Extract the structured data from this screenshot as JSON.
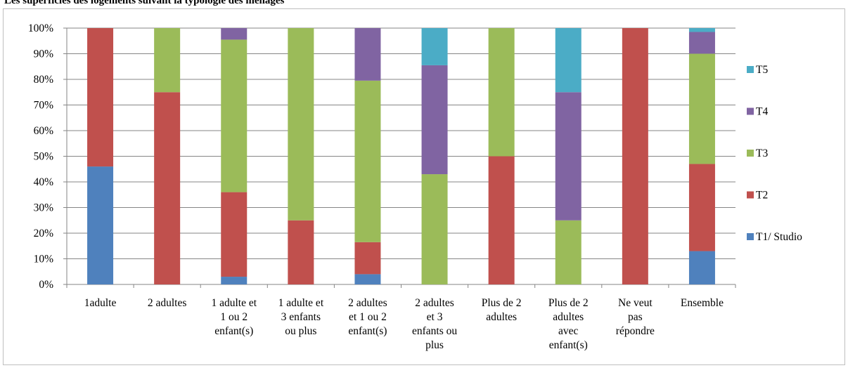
{
  "title": "Les superficies des logements suivant la typologie des ménages",
  "chart_data": {
    "type": "bar",
    "stacked": true,
    "percent": true,
    "categories": [
      [
        "1adulte"
      ],
      [
        "2 adultes"
      ],
      [
        "1 adulte et",
        "1 ou 2",
        "enfant(s)"
      ],
      [
        "1 adulte et",
        "3 enfants",
        "ou plus"
      ],
      [
        "2 adultes",
        "et 1 ou 2",
        "enfant(s)"
      ],
      [
        "2 adultes",
        "et 3",
        "enfants ou",
        "plus"
      ],
      [
        "Plus de 2",
        "adultes"
      ],
      [
        "Plus de 2",
        "adultes",
        "avec",
        "enfant(s)"
      ],
      [
        "Ne veut",
        "pas",
        "répondre"
      ],
      [
        "Ensemble"
      ]
    ],
    "series": [
      {
        "name": "T1/ Studio",
        "color": "#4f81bd",
        "values": [
          46,
          0,
          3,
          0,
          4,
          0,
          0,
          0,
          0,
          13
        ]
      },
      {
        "name": "T2",
        "color": "#c0504d",
        "values": [
          54,
          75,
          33,
          25,
          12.5,
          0,
          50,
          0,
          100,
          34
        ]
      },
      {
        "name": "T3",
        "color": "#9bbb59",
        "values": [
          0,
          25,
          59.5,
          75,
          63,
          43,
          50,
          25,
          0,
          43
        ]
      },
      {
        "name": "T4",
        "color": "#8064a2",
        "values": [
          0,
          0,
          4.5,
          0,
          20.5,
          42.5,
          0,
          50,
          0,
          8.5
        ]
      },
      {
        "name": "T5",
        "color": "#4bacc6",
        "values": [
          0,
          0,
          0,
          0,
          0,
          14.5,
          0,
          25,
          0,
          1.5
        ]
      }
    ],
    "yticks": [
      "0%",
      "10%",
      "20%",
      "30%",
      "40%",
      "50%",
      "60%",
      "70%",
      "80%",
      "90%",
      "100%"
    ],
    "ylim": [
      0,
      100
    ],
    "grid": true,
    "legend_position": "right"
  }
}
